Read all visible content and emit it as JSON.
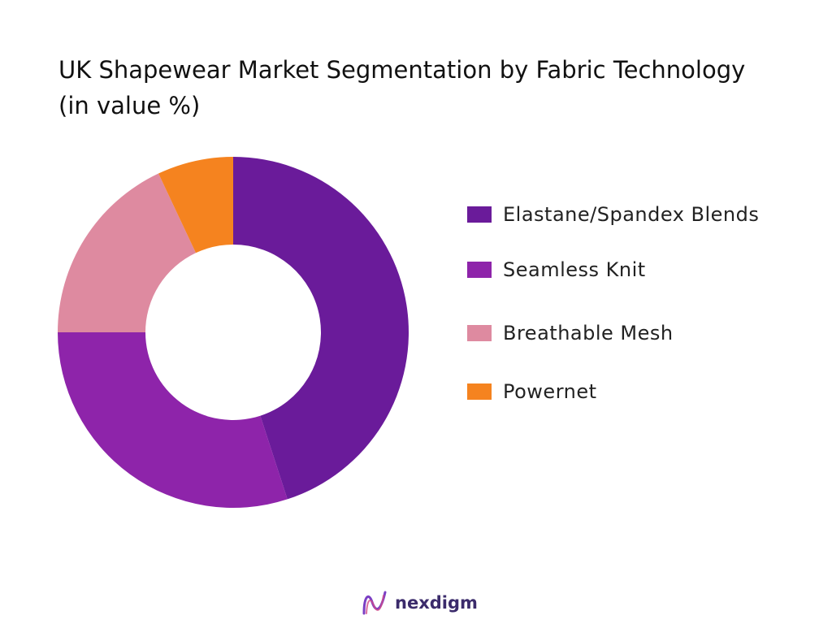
{
  "chart_data": {
    "type": "pie",
    "title": "UK Shapewear Market Segmentation by Fabric Technology (in value %)",
    "categories": [
      "Elastane/Spandex Blends",
      "Seamless Knit",
      "Breathable Mesh",
      "Powernet"
    ],
    "values": [
      45,
      30,
      18,
      7
    ],
    "colors": [
      "#6a1b9a",
      "#8e24aa",
      "#de8aa0",
      "#f5831f"
    ],
    "legend_position": "right",
    "donut": true
  },
  "logo": {
    "icon": "nexdigm-wave-icon",
    "text": "nexdigm"
  }
}
